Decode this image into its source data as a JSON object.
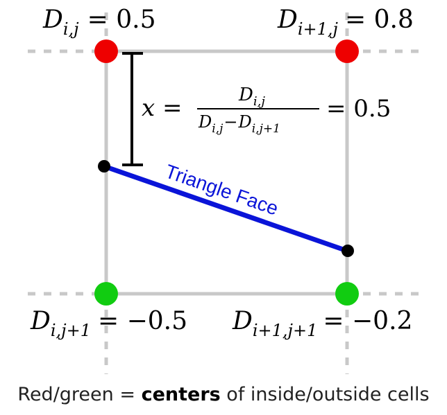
{
  "labels": {
    "top_left": {
      "sym": "D",
      "sub": "i,j",
      "eq": "= 0.5"
    },
    "top_right": {
      "sym": "D",
      "sub": "i+1,j",
      "eq": "= 0.8"
    },
    "bottom_left": {
      "sym": "D",
      "sub": "i,j+1",
      "eq": "= −0.5"
    },
    "bottom_right": {
      "sym": "D",
      "sub": "i+1,j+1",
      "eq": "= −0.2"
    }
  },
  "formula": {
    "lhs": "x =",
    "numerator_sym": "D",
    "numerator_sub": "i,j",
    "denominator_sym_1": "D",
    "denominator_sub_1": "i,j",
    "denominator_minus": "−",
    "denominator_sym_2": "D",
    "denominator_sub_2": "i,j+1",
    "rhs": "= 0.5"
  },
  "edge_label": "Triangle Face",
  "caption": {
    "before": "Red/green = ",
    "bold": "centers",
    "after": " of inside/outside cells"
  },
  "colors": {
    "inside_point": "#ee0000",
    "outside_point": "#11cc11",
    "triangle_face": "#0a14d8",
    "grid": "#c8c8c8",
    "marker": "#000000"
  }
}
